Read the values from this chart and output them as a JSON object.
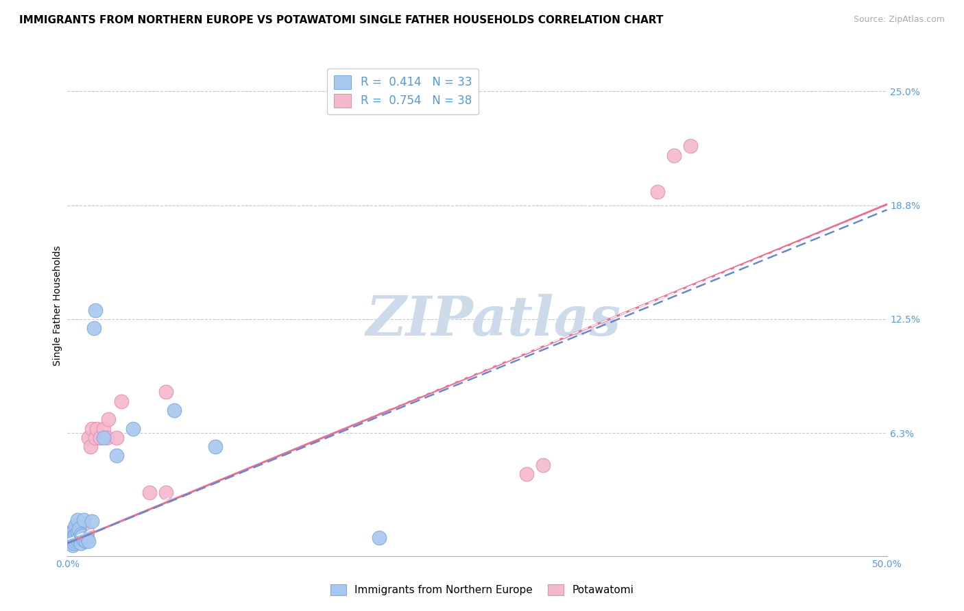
{
  "title": "IMMIGRANTS FROM NORTHERN EUROPE VS POTAWATOMI SINGLE FATHER HOUSEHOLDS CORRELATION CHART",
  "source_text": "Source: ZipAtlas.com",
  "ylabel": "Single Father Households",
  "xlim": [
    0.0,
    0.5
  ],
  "ylim": [
    -0.005,
    0.27
  ],
  "xticks": [
    0.0,
    0.1,
    0.2,
    0.3,
    0.4,
    0.5
  ],
  "xticklabels": [
    "0.0%",
    "",
    "",
    "",
    "",
    "50.0%"
  ],
  "ytick_vals": [
    0.0,
    0.0625,
    0.125,
    0.1875,
    0.25
  ],
  "yticklabels": [
    "",
    "6.3%",
    "12.5%",
    "18.8%",
    "25.0%"
  ],
  "grid_color": "#c8c8c8",
  "background_color": "#ffffff",
  "watermark_text": "ZIPatlas",
  "watermark_color": "#ccdaea",
  "legend_R1": "R =  0.414",
  "legend_N1": "N = 33",
  "legend_R2": "R =  0.754",
  "legend_N2": "N = 38",
  "scatter_blue_x": [
    0.001,
    0.002,
    0.002,
    0.003,
    0.003,
    0.003,
    0.004,
    0.004,
    0.005,
    0.005,
    0.005,
    0.006,
    0.006,
    0.006,
    0.007,
    0.007,
    0.008,
    0.008,
    0.009,
    0.01,
    0.01,
    0.011,
    0.012,
    0.013,
    0.015,
    0.016,
    0.017,
    0.022,
    0.03,
    0.04,
    0.065,
    0.09,
    0.19
  ],
  "scatter_blue_y": [
    0.002,
    0.003,
    0.005,
    0.001,
    0.004,
    0.008,
    0.002,
    0.006,
    0.003,
    0.007,
    0.012,
    0.004,
    0.008,
    0.015,
    0.005,
    0.01,
    0.002,
    0.007,
    0.006,
    0.004,
    0.015,
    0.003,
    0.005,
    0.003,
    0.014,
    0.12,
    0.13,
    0.06,
    0.05,
    0.065,
    0.075,
    0.055,
    0.005
  ],
  "scatter_pink_x": [
    0.001,
    0.001,
    0.002,
    0.002,
    0.003,
    0.003,
    0.004,
    0.004,
    0.005,
    0.005,
    0.006,
    0.006,
    0.007,
    0.007,
    0.008,
    0.009,
    0.01,
    0.011,
    0.012,
    0.013,
    0.014,
    0.015,
    0.017,
    0.018,
    0.02,
    0.022,
    0.024,
    0.025,
    0.03,
    0.033,
    0.05,
    0.06,
    0.06,
    0.28,
    0.29,
    0.36,
    0.37,
    0.38
  ],
  "scatter_pink_y": [
    0.002,
    0.005,
    0.004,
    0.008,
    0.003,
    0.007,
    0.005,
    0.01,
    0.004,
    0.008,
    0.006,
    0.012,
    0.005,
    0.01,
    0.008,
    0.007,
    0.006,
    0.009,
    0.008,
    0.06,
    0.055,
    0.065,
    0.06,
    0.065,
    0.06,
    0.065,
    0.06,
    0.07,
    0.06,
    0.08,
    0.03,
    0.03,
    0.085,
    0.04,
    0.045,
    0.195,
    0.215,
    0.22
  ],
  "blue_line_x": [
    0.0,
    0.5
  ],
  "blue_line_y": [
    0.002,
    0.185
  ],
  "pink_line_x": [
    0.0,
    0.5
  ],
  "pink_line_y": [
    0.002,
    0.188
  ],
  "title_fontsize": 11,
  "tick_fontsize": 10,
  "label_fontsize": 10,
  "legend_fontsize": 12,
  "source_fontsize": 9
}
